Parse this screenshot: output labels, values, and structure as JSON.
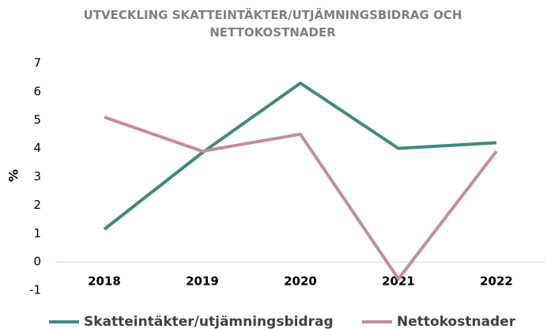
{
  "chart_data": {
    "type": "line",
    "title": "UTVECKLING SKATTEINTÄKTER/UTJÄMNINGSBIDRAG OCH NETTOKOSTNADER",
    "y_label": "%",
    "categories": [
      "2018",
      "2019",
      "2020",
      "2021",
      "2022"
    ],
    "series": [
      {
        "name": "Skatteintäkter/utjämningsbidrag",
        "color": "#3e8a7c",
        "values": [
          1.15,
          3.85,
          6.3,
          4.0,
          4.2
        ]
      },
      {
        "name": "Nettokostnader",
        "color": "#c48b9f",
        "values": [
          5.1,
          3.9,
          4.5,
          -0.6,
          3.9
        ]
      }
    ],
    "ylim": [
      -1,
      7
    ],
    "yticks": [
      -1,
      0,
      1,
      2,
      3,
      4,
      5,
      6,
      7
    ],
    "legend": "bottom"
  }
}
